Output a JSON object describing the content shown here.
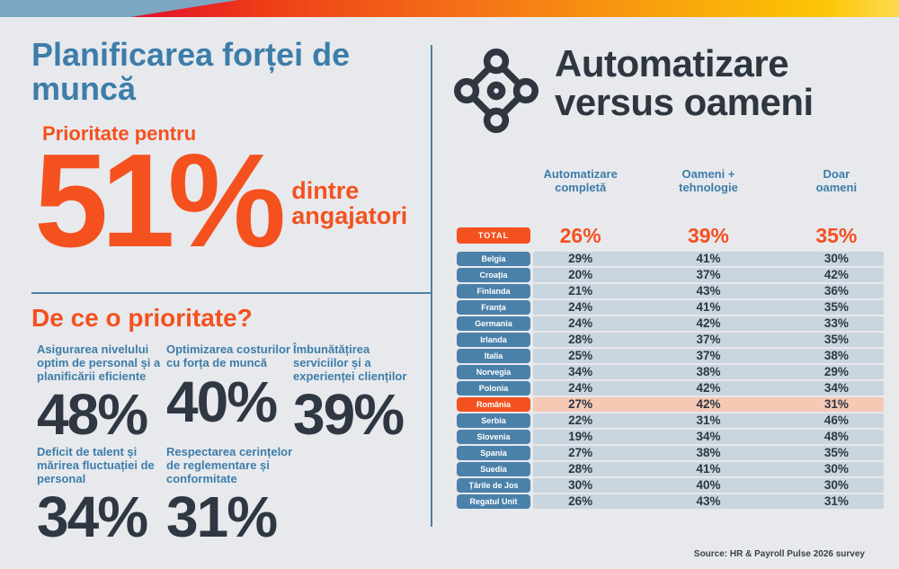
{
  "theme": {
    "background": "#e8e9ed",
    "accent_orange": "#f4511f",
    "accent_blue": "#3d7da9",
    "navy_text": "#2f3743",
    "badge_blue": "#4a81a9",
    "row_band": "#c9d5df",
    "row_band_highlight": "#f5c9b3",
    "topbar_blue": "#7ba7c2",
    "topbar_gradient": [
      "#e30b2d",
      "#f47317",
      "#fdc503"
    ]
  },
  "left": {
    "title": "Planificarea forței de muncă",
    "priority_label": "Prioritate pentru",
    "big_stat": "51%",
    "big_stat_suffix": "dintre angajatori",
    "why_title": "De ce o prioritate?",
    "reasons": [
      {
        "label": "Asigurarea nivelului optim de personal și a planificării eficiente",
        "value": "48%"
      },
      {
        "label": "Optimizarea costurilor cu forța de muncă",
        "value": "40%"
      },
      {
        "label": "Îmbunătățirea serviciilor și a experienței clienților",
        "value": "39%"
      },
      {
        "label": "Deficit de talent și mărirea fluctuației de personal",
        "value": "34%"
      },
      {
        "label": "Respectarea cerințelor de reglementare și conformitate",
        "value": "31%"
      }
    ]
  },
  "right": {
    "title": "Automatizare versus oameni",
    "icon": "network-diamond-icon",
    "columns": [
      "Automatizare\ncompletă",
      "Oameni +\ntehnologie",
      "Doar\noameni"
    ],
    "total": {
      "label": "TOTAL",
      "values": [
        "26%",
        "39%",
        "35%"
      ]
    },
    "rows": [
      {
        "label": "Belgia",
        "values": [
          "29%",
          "41%",
          "30%"
        ],
        "highlight": false
      },
      {
        "label": "Croația",
        "values": [
          "20%",
          "37%",
          "42%"
        ],
        "highlight": false
      },
      {
        "label": "Finlanda",
        "values": [
          "21%",
          "43%",
          "36%"
        ],
        "highlight": false
      },
      {
        "label": "Franța",
        "values": [
          "24%",
          "41%",
          "35%"
        ],
        "highlight": false
      },
      {
        "label": "Germania",
        "values": [
          "24%",
          "42%",
          "33%"
        ],
        "highlight": false
      },
      {
        "label": "Irlanda",
        "values": [
          "28%",
          "37%",
          "35%"
        ],
        "highlight": false
      },
      {
        "label": "Italia",
        "values": [
          "25%",
          "37%",
          "38%"
        ],
        "highlight": false
      },
      {
        "label": "Norvegia",
        "values": [
          "34%",
          "38%",
          "29%"
        ],
        "highlight": false
      },
      {
        "label": "Polonia",
        "values": [
          "24%",
          "42%",
          "34%"
        ],
        "highlight": false
      },
      {
        "label": "România",
        "values": [
          "27%",
          "42%",
          "31%"
        ],
        "highlight": true
      },
      {
        "label": "Serbia",
        "values": [
          "22%",
          "31%",
          "46%"
        ],
        "highlight": false
      },
      {
        "label": "Slovenia",
        "values": [
          "19%",
          "34%",
          "48%"
        ],
        "highlight": false
      },
      {
        "label": "Spania",
        "values": [
          "27%",
          "38%",
          "35%"
        ],
        "highlight": false
      },
      {
        "label": "Suedia",
        "values": [
          "28%",
          "41%",
          "30%"
        ],
        "highlight": false
      },
      {
        "label": "Țările de Jos",
        "values": [
          "30%",
          "40%",
          "30%"
        ],
        "highlight": false
      },
      {
        "label": "Regatul Unit",
        "values": [
          "26%",
          "43%",
          "31%"
        ],
        "highlight": false
      }
    ]
  },
  "footer": {
    "source": "Source: HR & Payroll Pulse 2026 survey"
  },
  "chart_data": [
    {
      "type": "table",
      "title": "Automatizare versus oameni",
      "columns": [
        "Automatizare completă",
        "Oameni + tehnologie",
        "Doar oameni"
      ],
      "rows": [
        [
          "TOTAL",
          26,
          39,
          35
        ],
        [
          "Belgia",
          29,
          41,
          30
        ],
        [
          "Croația",
          20,
          37,
          42
        ],
        [
          "Finlanda",
          21,
          43,
          36
        ],
        [
          "Franța",
          24,
          41,
          35
        ],
        [
          "Germania",
          24,
          42,
          33
        ],
        [
          "Irlanda",
          28,
          37,
          35
        ],
        [
          "Italia",
          25,
          37,
          38
        ],
        [
          "Norvegia",
          34,
          38,
          29
        ],
        [
          "Polonia",
          24,
          42,
          34
        ],
        [
          "România",
          27,
          42,
          31
        ],
        [
          "Serbia",
          22,
          31,
          46
        ],
        [
          "Slovenia",
          19,
          34,
          48
        ],
        [
          "Spania",
          27,
          38,
          35
        ],
        [
          "Suedia",
          28,
          41,
          30
        ],
        [
          "Țările de Jos",
          30,
          40,
          30
        ],
        [
          "Regatul Unit",
          26,
          43,
          31
        ]
      ],
      "units": "percent",
      "highlight_row": "România"
    },
    {
      "type": "bar",
      "title": "De ce o prioritate?",
      "categories": [
        "Asigurarea nivelului optim de personal și a planificării eficiente",
        "Optimizarea costurilor cu forța de muncă",
        "Îmbunătățirea serviciilor și a experienței clienților",
        "Deficit de talent și mărirea fluctuației de personal",
        "Respectarea cerințelor de reglementare și conformitate"
      ],
      "values": [
        48,
        40,
        39,
        34,
        31
      ],
      "units": "percent",
      "headline": {
        "label": "Prioritate pentru ... dintre angajatori",
        "value": 51
      }
    }
  ]
}
